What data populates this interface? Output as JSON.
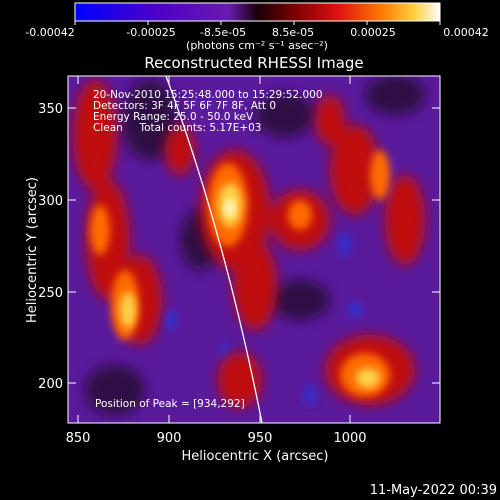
{
  "colorbar": {
    "tick_labels": [
      "-0.00042",
      "-0.00025",
      "-8.5e-05",
      "8.5e-05",
      "0.00025",
      "0.00042"
    ],
    "unit_label": "(photons cm⁻² s⁻¹ asec⁻²)",
    "range": [
      -0.00042,
      0.00042
    ]
  },
  "image": {
    "title": "Reconstructed RHESSI Image",
    "info_lines": [
      "20-Nov-2010 15:25:48.000 to 15:29:52.000",
      "Detectors: 3F 4F 5F 6F 7F 8F, Att 0",
      "Energy Range: 25.0 - 50.0 keV",
      "Clean     Total counts: 5.17E+03"
    ],
    "peak_label": "Position of Peak = [934,292]",
    "peak": [
      934,
      292
    ]
  },
  "axes": {
    "xlabel": "Heliocentric X (arcsec)",
    "ylabel": "Heliocentric Y (arcsec)",
    "xlim": [
      850,
      1040
    ],
    "ylim": [
      175,
      372
    ],
    "x_ticks": [
      "850",
      "900",
      "950",
      "1000"
    ],
    "y_ticks": [
      "200",
      "250",
      "300",
      "350"
    ]
  },
  "footer": {
    "date": "11-May-2022 00:39"
  }
}
